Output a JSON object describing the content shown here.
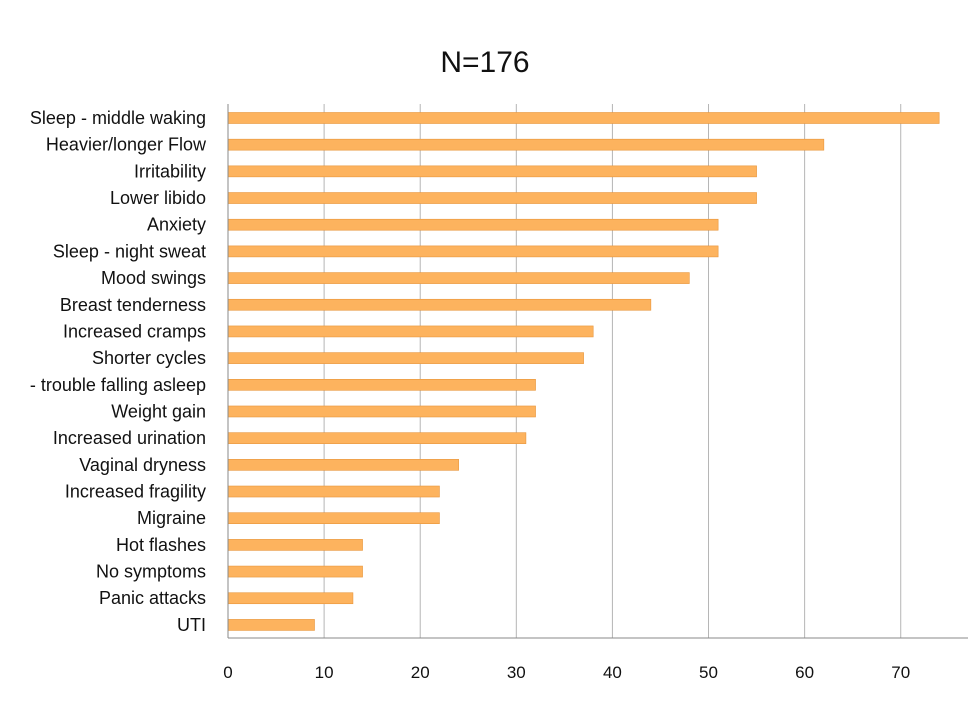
{
  "chart_data": {
    "type": "bar",
    "orientation": "horizontal",
    "title": "N=176",
    "xlabel": "",
    "ylabel": "",
    "categories": [
      "Sleep - middle waking",
      "Heavier/longer Flow",
      "Irritability",
      "Lower libido",
      "Anxiety",
      "Sleep - night sweat",
      "Mood swings",
      "Breast tenderness",
      "Increased cramps",
      "Shorter cycles",
      "- trouble falling asleep",
      "Weight gain",
      "Increased urination",
      "Vaginal dryness",
      "Increased fragility",
      "Migraine",
      "Hot flashes",
      "No symptoms",
      "Panic attacks",
      "UTI"
    ],
    "values": [
      74,
      62,
      55,
      55,
      51,
      51,
      48,
      44,
      38,
      37,
      32,
      32,
      31,
      24,
      22,
      22,
      14,
      14,
      13,
      9
    ],
    "xlim": [
      0,
      77
    ],
    "xticks": [
      0,
      10,
      20,
      30,
      40,
      50,
      60,
      70
    ],
    "grid": "vertical",
    "legend": "none",
    "colors": {
      "bar": "#fdb35e",
      "bar_edge": "#e8953a",
      "grid": "#b5b5b5",
      "axis": "#888888"
    }
  }
}
